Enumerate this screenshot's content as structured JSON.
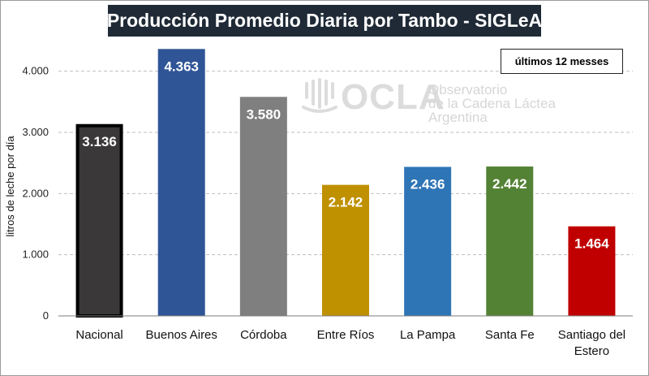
{
  "header": {
    "title": "Producción Promedio Diaria por Tambo - SIGLeA",
    "period_label": "últimos 12 messes"
  },
  "watermark": {
    "logo_text": "OCLA",
    "line1": "Observatorio",
    "line2": "de la Cadena Láctea",
    "line3": "Argentina"
  },
  "chart_data": {
    "type": "bar",
    "title": "Producción Promedio Diaria por Tambo - SIGLeA",
    "xlabel": "",
    "ylabel": "litros de leche por día",
    "ylim": [
      0,
      4500
    ],
    "yticks": [
      0,
      1000,
      2000,
      3000,
      4000
    ],
    "ytick_labels": [
      "0",
      "1.000",
      "2.000",
      "3.000",
      "4.000"
    ],
    "grid": true,
    "categories": [
      "Nacional",
      "Buenos Aires",
      "Córdoba",
      "Entre Ríos",
      "La Pampa",
      "Santa Fe",
      "Santiago del Estero"
    ],
    "category_lines": [
      [
        "Nacional"
      ],
      [
        "Buenos Aires"
      ],
      [
        "Córdoba"
      ],
      [
        "Entre Ríos"
      ],
      [
        "La Pampa"
      ],
      [
        "Santa Fe"
      ],
      [
        "Santiago del",
        "Estero"
      ]
    ],
    "values": [
      3136,
      4363,
      3580,
      2142,
      2436,
      2442,
      1464
    ],
    "value_labels": [
      "3.136",
      "4.363",
      "3.580",
      "2.142",
      "2.436",
      "2.442",
      "1.464"
    ],
    "colors": [
      "#3a3838",
      "#2f5597",
      "#7f7f7f",
      "#bf9000",
      "#2e75b6",
      "#548235",
      "#c00000"
    ],
    "highlight_outline": [
      "#000000",
      null,
      null,
      null,
      null,
      null,
      null
    ]
  }
}
